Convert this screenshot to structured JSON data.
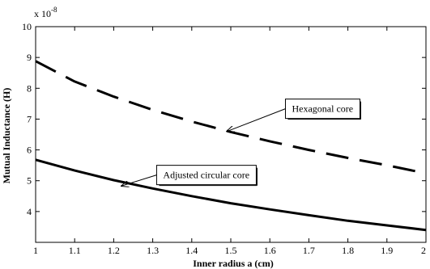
{
  "chart_data": {
    "type": "line",
    "title": "",
    "xlabel": "Inner radius a (cm)",
    "ylabel": "Mutual Inductance (H)",
    "y_multiplier_base": "x 10",
    "y_multiplier_exp": "-8",
    "xlim": [
      1,
      2
    ],
    "ylim": [
      3,
      10
    ],
    "grid": false,
    "legend": "none",
    "x_ticks": [
      1,
      1.1,
      1.2,
      1.3,
      1.4,
      1.5,
      1.6,
      1.7,
      1.8,
      1.9,
      2
    ],
    "x_tick_labels": [
      "1",
      "1.1",
      "1.2",
      "1.3",
      "1.4",
      "1.5",
      "1.6",
      "1.7",
      "1.8",
      "1.9",
      "2"
    ],
    "y_ticks": [
      4,
      5,
      6,
      7,
      8,
      9,
      10
    ],
    "y_tick_labels": [
      "4",
      "5",
      "6",
      "7",
      "8",
      "9",
      "10"
    ],
    "series": [
      {
        "style": "dashed",
        "color": "#000000",
        "x": [
          1,
          1.1,
          1.2,
          1.3,
          1.4,
          1.5,
          1.6,
          1.7,
          1.8,
          1.9,
          2
        ],
        "y": [
          8.88,
          8.22,
          7.73,
          7.3,
          6.92,
          6.58,
          6.28,
          6.0,
          5.74,
          5.5,
          5.24
        ]
      },
      {
        "style": "solid",
        "color": "#000000",
        "x": [
          1,
          1.1,
          1.2,
          1.3,
          1.4,
          1.5,
          1.6,
          1.7,
          1.8,
          1.9,
          2
        ],
        "y": [
          5.68,
          5.33,
          5.02,
          4.75,
          4.5,
          4.27,
          4.07,
          3.88,
          3.7,
          3.55,
          3.4
        ]
      }
    ],
    "annotations": [
      {
        "text": "Hexagonal core",
        "arrow_to": [
          1.49,
          6.6
        ],
        "box_anchor": [
          1.64,
          7.65
        ]
      },
      {
        "text": "Adjusted circular core",
        "arrow_to": [
          1.22,
          4.83
        ],
        "box_anchor": [
          1.31,
          5.5
        ]
      }
    ]
  }
}
